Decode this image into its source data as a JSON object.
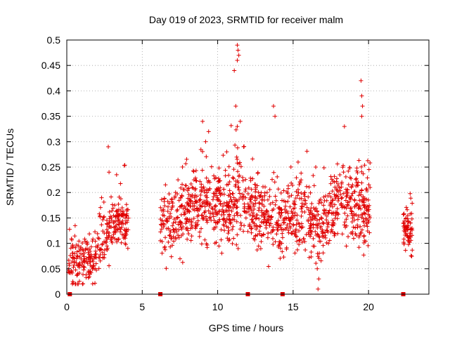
{
  "chart_data": {
    "type": "scatter",
    "title": "Day 019 of 2023, SRMTID for receiver malm",
    "xlabel": "GPS time / hours",
    "ylabel": "SRMTID / TECUs",
    "xlim": [
      0,
      24
    ],
    "ylim": [
      0,
      0.5
    ],
    "grid": true,
    "x_ticks": [
      0,
      5,
      10,
      15,
      20
    ],
    "y_ticks": [
      0,
      0.05,
      0.1,
      0.15,
      0.2,
      0.25,
      0.3,
      0.35,
      0.4,
      0.45,
      0.5
    ],
    "marker": "+",
    "color": "#e00000",
    "series": [
      {
        "name": "SRMTID",
        "segments": [
          {
            "x_start": 0.05,
            "x_end": 4.1,
            "base": [
              [
                0.05,
                0.06
              ],
              [
                1.0,
                0.06
              ],
              [
                1.8,
                0.08
              ],
              [
                2.5,
                0.11
              ],
              [
                3.0,
                0.14
              ],
              [
                3.5,
                0.15
              ],
              [
                4.1,
                0.14
              ]
            ],
            "spread": 0.035,
            "count": 320
          },
          {
            "x_start": 6.2,
            "x_end": 20.1,
            "base": [
              [
                6.2,
                0.13
              ],
              [
                7.5,
                0.15
              ],
              [
                8.5,
                0.17
              ],
              [
                9.5,
                0.18
              ],
              [
                10.5,
                0.16
              ],
              [
                11.3,
                0.19
              ],
              [
                12.0,
                0.18
              ],
              [
                13.0,
                0.15
              ],
              [
                14.0,
                0.14
              ],
              [
                15.0,
                0.15
              ],
              [
                16.0,
                0.16
              ],
              [
                16.8,
                0.12
              ],
              [
                17.5,
                0.17
              ],
              [
                18.5,
                0.18
              ],
              [
                19.5,
                0.17
              ],
              [
                20.1,
                0.17
              ]
            ],
            "spread": 0.045,
            "count": 1200
          },
          {
            "x_start": 22.3,
            "x_end": 22.9,
            "base": [
              [
                22.3,
                0.13
              ],
              [
                22.9,
                0.12
              ]
            ],
            "spread": 0.03,
            "count": 70
          }
        ],
        "outliers": [
          [
            2.75,
            0.29
          ],
          [
            2.8,
            0.24
          ],
          [
            3.3,
            0.235
          ],
          [
            9.0,
            0.34
          ],
          [
            9.2,
            0.3
          ],
          [
            9.4,
            0.32
          ],
          [
            10.6,
            0.28
          ],
          [
            11.1,
            0.44
          ],
          [
            11.3,
            0.49
          ],
          [
            11.35,
            0.48
          ],
          [
            11.3,
            0.46
          ],
          [
            11.4,
            0.47
          ],
          [
            11.2,
            0.37
          ],
          [
            11.5,
            0.34
          ],
          [
            11.3,
            0.33
          ],
          [
            13.7,
            0.37
          ],
          [
            13.8,
            0.35
          ],
          [
            16.5,
            0.25
          ],
          [
            16.6,
            0.05
          ],
          [
            16.65,
            0.01
          ],
          [
            16.7,
            0.03
          ],
          [
            16.62,
            0.08
          ],
          [
            18.4,
            0.33
          ],
          [
            19.5,
            0.42
          ],
          [
            19.55,
            0.39
          ],
          [
            19.6,
            0.37
          ],
          [
            19.55,
            0.35
          ]
        ]
      }
    ],
    "gap_markers_x": [
      0.2,
      6.2,
      12.0,
      14.3,
      22.3
    ]
  }
}
